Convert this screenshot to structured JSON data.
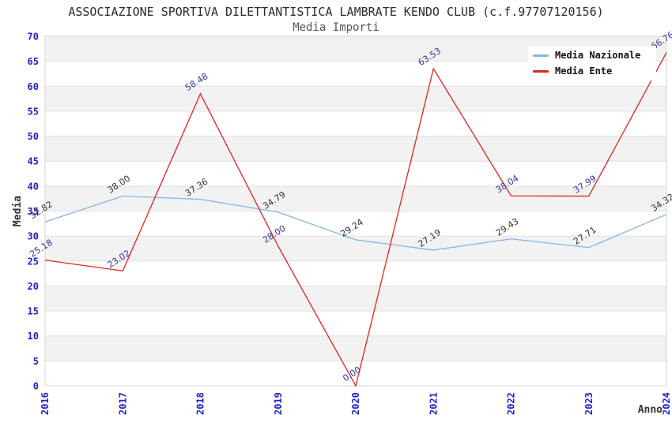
{
  "header": {
    "title": "ASSOCIAZIONE SPORTIVA DILETTANTISTICA LAMBRATE KENDO CLUB (c.f.97707120156)",
    "subtitle": "Media Importi"
  },
  "chart_data": {
    "type": "line",
    "x": [
      2016,
      2017,
      2018,
      2019,
      2020,
      2021,
      2022,
      2023,
      2024
    ],
    "series": [
      {
        "name": "Media Nazionale",
        "color": "#85b5e8",
        "label_color": "#333333",
        "values": [
          32.82,
          38.0,
          37.36,
          34.79,
          29.24,
          27.19,
          29.43,
          27.71,
          34.32
        ]
      },
      {
        "name": "Media Ente",
        "color": "#e02421",
        "label_color": "#333399",
        "values": [
          25.18,
          23.02,
          58.48,
          28.0,
          0.0,
          63.53,
          38.04,
          37.99,
          66.76
        ]
      }
    ],
    "xlabel": "Anno",
    "ylabel": "Media",
    "ylim": [
      0,
      70
    ],
    "ytick_step": 5,
    "grid": true,
    "legend_position": "top-right",
    "tick_color": "#2222cc",
    "axis_text_color": "#333333",
    "band_colors": [
      "#f2f2f2",
      "#ffffff"
    ],
    "gridline_color": "#e2e2e2",
    "border_color": "#d5d5d5"
  }
}
